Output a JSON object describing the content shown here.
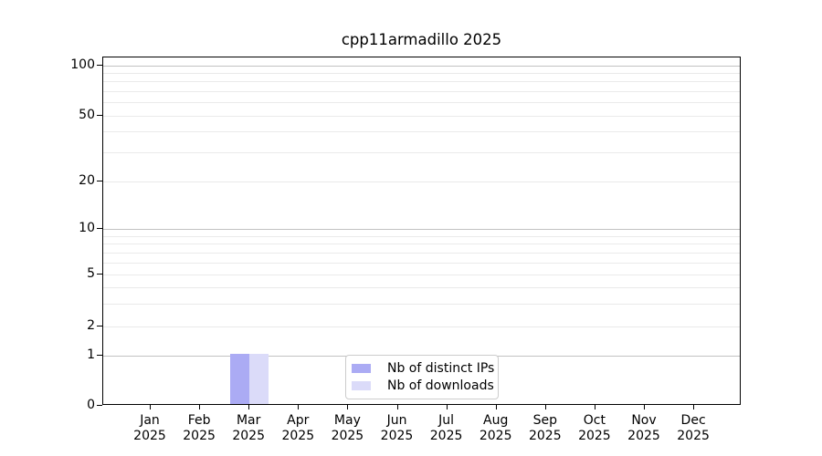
{
  "title": "cpp11armadillo 2025",
  "chart_data": {
    "type": "bar",
    "title": "cpp11armadillo 2025",
    "x_tick_labels": [
      {
        "month": "Jan",
        "year": "2025"
      },
      {
        "month": "Feb",
        "year": "2025"
      },
      {
        "month": "Mar",
        "year": "2025"
      },
      {
        "month": "Apr",
        "year": "2025"
      },
      {
        "month": "May",
        "year": "2025"
      },
      {
        "month": "Jun",
        "year": "2025"
      },
      {
        "month": "Jul",
        "year": "2025"
      },
      {
        "month": "Aug",
        "year": "2025"
      },
      {
        "month": "Sep",
        "year": "2025"
      },
      {
        "month": "Oct",
        "year": "2025"
      },
      {
        "month": "Nov",
        "year": "2025"
      },
      {
        "month": "Dec",
        "year": "2025"
      }
    ],
    "y_tick_labels": [
      "0",
      "1",
      "2",
      "5",
      "10",
      "20",
      "50",
      "100"
    ],
    "y_tick_values": [
      0,
      1,
      2,
      5,
      10,
      20,
      50,
      100
    ],
    "y_scale": "asinh-like (linear near 0, log above 1)",
    "ylim": [
      0,
      112
    ],
    "grid": "both (major + minor horizontal gridlines)",
    "legend_position": "lower center inside axes",
    "series": [
      {
        "name": "Nb of distinct IPs",
        "color": "#ababf4",
        "values": [
          0,
          0,
          1,
          0,
          0,
          0,
          0,
          0,
          0,
          0,
          0,
          0
        ]
      },
      {
        "name": "Nb of downloads",
        "color": "#dbdbf9",
        "values": [
          0,
          0,
          1,
          0,
          0,
          0,
          0,
          0,
          0,
          0,
          0,
          0
        ]
      }
    ]
  }
}
